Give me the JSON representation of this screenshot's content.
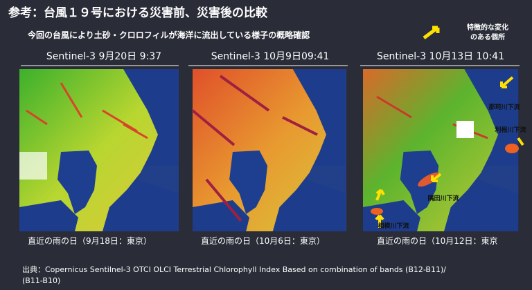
{
  "header": {
    "title": "参考：台風１９号における災害前、災害後の比較",
    "subtitle": "今回の台風により土砂・クロロフィルが海洋に流出している様子の概略確認"
  },
  "legend": {
    "lines": [
      "特徴的な変化",
      "のある個所"
    ]
  },
  "panels": [
    {
      "label": "Sentinel-3 9月20日 9:37",
      "caption": "直近の雨の日（9月18日：東京）"
    },
    {
      "label": "Sentinel-3 10月9日09:41",
      "caption": "直近の雨の日（10月6日：東京）"
    },
    {
      "label": "Sentinel-3 10月13日 10:41",
      "caption": "直近の雨の日（10月12日：東京",
      "annotations": [
        "那珂川下流",
        "利根川下流",
        "隅田川下流",
        "相模川下流"
      ]
    }
  ],
  "source": {
    "lines": [
      "出典：Copernicus Sentilnel-3 OTCI OLCI Terrestrial Chlorophyll Index Based on combination of bands (B12-B11)/",
      "(B11-B10)"
    ]
  }
}
